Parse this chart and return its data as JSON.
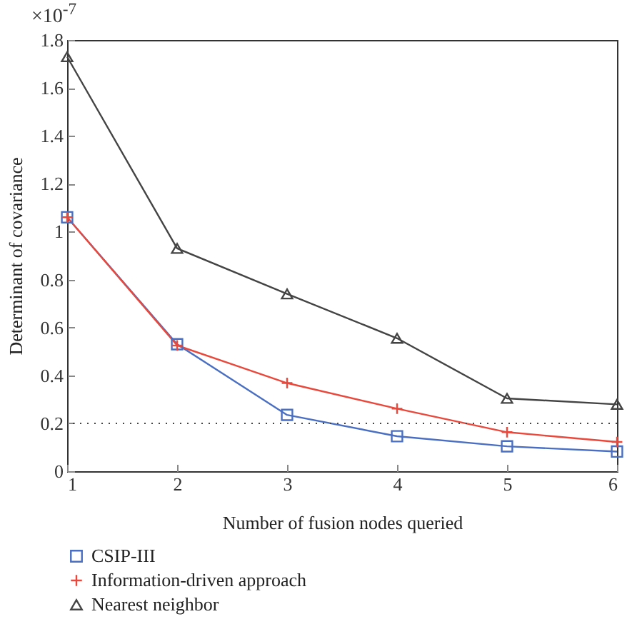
{
  "chart_data": {
    "type": "line",
    "xlabel": "Number of fusion nodes queried",
    "ylabel": "Determinant of covariance",
    "annotations": [
      "×10$^{-7}$"
    ],
    "x": [
      1,
      2,
      3,
      4,
      5,
      6
    ],
    "series": [
      {
        "name": "CSIP-III",
        "color": "#4a6fc2",
        "marker": "square",
        "values": [
          1.06,
          0.53,
          0.235,
          0.146,
          0.104,
          0.082
        ]
      },
      {
        "name": "Information-driven approach",
        "color": "#e8493c",
        "marker": "cross",
        "values": [
          1.06,
          0.525,
          0.368,
          0.261,
          0.163,
          0.122
        ]
      },
      {
        "name": "Nearest neighbor",
        "color": "#444444",
        "marker": "triangle",
        "values": [
          1.73,
          0.93,
          0.74,
          0.555,
          0.304,
          0.279
        ]
      }
    ],
    "xlim": [
      1,
      6
    ],
    "xticks": [
      1,
      2,
      3,
      4,
      5,
      6
    ],
    "ylim": [
      0,
      1.8
    ],
    "yticks": [
      0,
      0.2,
      0.4,
      0.6,
      0.8,
      1,
      1.2,
      1.4,
      1.6,
      1.8
    ],
    "ref_lines": [
      {
        "axis": "y",
        "value": 0.2,
        "color": "#444444",
        "line_style": "dotted"
      }
    ],
    "grid": false,
    "legend": "bottom"
  }
}
